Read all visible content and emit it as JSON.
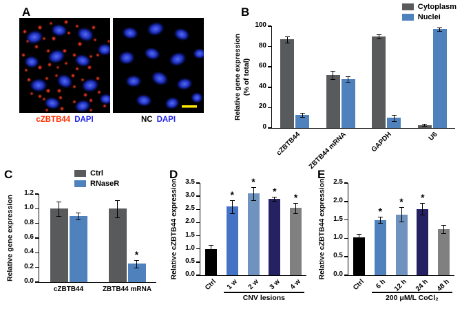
{
  "colors": {
    "bar_gray": "#595A5C",
    "bar_blue": "#4F81BD",
    "bar_steel": "#7092BE",
    "bar_navy": "#262262",
    "bar_black": "#000000",
    "bar_gray2": "#808080",
    "stain_red": "#FF2D00",
    "dapi_blue": "#2222EE",
    "scalebar_yellow": "#FFE600"
  },
  "panels": {
    "A": {
      "label": "A",
      "caption_left": [
        "cZBTB44",
        "DAPI"
      ],
      "caption_right": [
        "NC",
        "DAPI"
      ]
    }
  },
  "charts": {
    "B": {
      "label": "B",
      "type": "bar",
      "ylabel_lines": [
        "Relative gene expression",
        "(% of total)"
      ],
      "ylim": [
        0,
        100
      ],
      "yticks": [
        0,
        20,
        40,
        60,
        80,
        100
      ],
      "decimals": 0,
      "categories": [
        "cZBTB44",
        "ZBTB44 mRNA",
        "GAPDH",
        "U6"
      ],
      "xtick_rotate": 45,
      "legend": [
        {
          "name": "Cytoplasm",
          "color": "#595A5C"
        },
        {
          "name": "Nuclei",
          "color": "#4F81BD"
        }
      ],
      "series": [
        {
          "name": "Cytoplasm",
          "color": "#595A5C",
          "values": [
            87,
            52,
            90,
            3
          ],
          "errors": [
            3,
            4,
            2,
            1
          ],
          "sig": [
            "",
            "",
            "",
            ""
          ]
        },
        {
          "name": "Nuclei",
          "color": "#4F81BD",
          "values": [
            13,
            48,
            10,
            97
          ],
          "errors": [
            2,
            3,
            3,
            1.5
          ],
          "sig": [
            "",
            "",
            "",
            ""
          ]
        }
      ]
    },
    "C": {
      "label": "C",
      "type": "bar",
      "ylabel_lines": [
        "Relative gene expression"
      ],
      "ylim": [
        0,
        1.2
      ],
      "yticks": [
        0,
        0.2,
        0.4,
        0.6,
        0.8,
        1.0,
        1.2
      ],
      "decimals": 1,
      "categories": [
        "cZBTB44",
        "ZBTB44 mRNA"
      ],
      "xtick_rotate": 0,
      "legend": [
        {
          "name": "Ctrl",
          "color": "#595A5C"
        },
        {
          "name": "RNaseR",
          "color": "#4F81BD"
        }
      ],
      "series": [
        {
          "name": "Ctrl",
          "color": "#595A5C",
          "values": [
            1.0,
            1.0
          ],
          "errors": [
            0.1,
            0.12
          ],
          "sig": [
            "",
            ""
          ]
        },
        {
          "name": "RNaseR",
          "color": "#4F81BD",
          "values": [
            0.9,
            0.25
          ],
          "errors": [
            0.05,
            0.05
          ],
          "sig": [
            "",
            "*"
          ]
        }
      ]
    },
    "D": {
      "label": "D",
      "type": "bar",
      "ylabel_lines": [
        "Relative cZBTB44 expression"
      ],
      "ylim": [
        0,
        3.5
      ],
      "yticks": [
        0,
        0.5,
        1.0,
        1.5,
        2.0,
        2.5,
        3.0,
        3.5
      ],
      "decimals": 1,
      "categories": [
        "Ctrl",
        "1 w",
        "2 w",
        "3 w",
        "4 w"
      ],
      "xtick_rotate": 45,
      "series": [
        {
          "name": "CNV",
          "colors": [
            "#000000",
            "#4472C4",
            "#7092BE",
            "#262262",
            "#808080"
          ],
          "values": [
            1.0,
            2.6,
            3.1,
            2.9,
            2.55
          ],
          "errors": [
            0.15,
            0.25,
            0.25,
            0.08,
            0.2
          ],
          "sig": [
            "",
            "*",
            "*",
            "*",
            "*"
          ]
        }
      ],
      "bracket": {
        "text": "CNV lesions",
        "from": 1,
        "to": 4
      }
    },
    "E": {
      "label": "E",
      "type": "bar",
      "ylabel_lines": [
        "Relative cZBTB44 expression"
      ],
      "ylim": [
        0,
        2.5
      ],
      "yticks": [
        0,
        0.5,
        1.0,
        1.5,
        2.0,
        2.5
      ],
      "decimals": 1,
      "categories": [
        "Ctrl",
        "6 h",
        "12 h",
        "24 h",
        "48 h"
      ],
      "xtick_rotate": 45,
      "series": [
        {
          "name": "CoCl2",
          "colors": [
            "#000000",
            "#4F81BD",
            "#7092BE",
            "#262262",
            "#808080"
          ],
          "values": [
            1.02,
            1.5,
            1.65,
            1.8,
            1.25
          ],
          "errors": [
            0.1,
            0.08,
            0.2,
            0.15,
            0.12
          ],
          "sig": [
            "",
            "*",
            "*",
            "*",
            ""
          ]
        }
      ],
      "bracket": {
        "text": "200 μM/L CoCl₂",
        "from": 1,
        "to": 4
      }
    }
  }
}
